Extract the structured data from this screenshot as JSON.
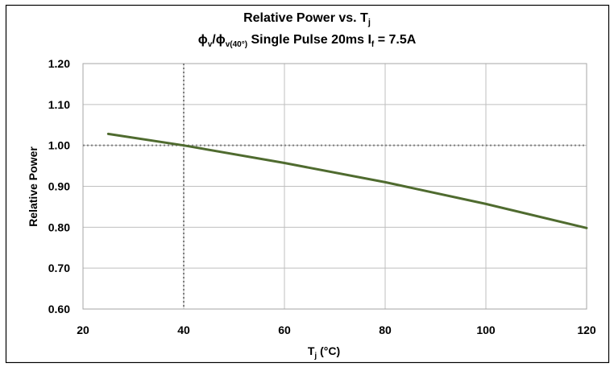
{
  "chart_data": {
    "type": "line",
    "title": {
      "line1_main": "Relative Power  vs. T",
      "line1_sub": "j",
      "line2_a": "ϕ",
      "line2_a_sub": "v",
      "line2_slash": "/ϕ",
      "line2_b_sub": "v(40°)",
      "line2_rest": " Single Pulse 20ms  I",
      "line2_f_sub": "f",
      "line2_end": " = 7.5A"
    },
    "xlabel": {
      "main": "T",
      "sub": "j",
      "unit": " (°C)"
    },
    "ylabel": "Relative Power",
    "xlim": [
      20,
      120
    ],
    "ylim": [
      0.6,
      1.2
    ],
    "x_ticks": [
      "20",
      "40",
      "60",
      "80",
      "100",
      "120"
    ],
    "y_ticks": [
      "0.60",
      "0.70",
      "0.80",
      "0.90",
      "1.00",
      "1.10",
      "1.20"
    ],
    "grid": true,
    "reference_lines": {
      "x": 40,
      "y": 1.0
    },
    "series": [
      {
        "color": "#4f6b2f",
        "x": [
          25,
          40,
          60,
          80,
          100,
          120
        ],
        "y": [
          1.028,
          1.0,
          0.957,
          0.91,
          0.857,
          0.798
        ]
      }
    ]
  }
}
